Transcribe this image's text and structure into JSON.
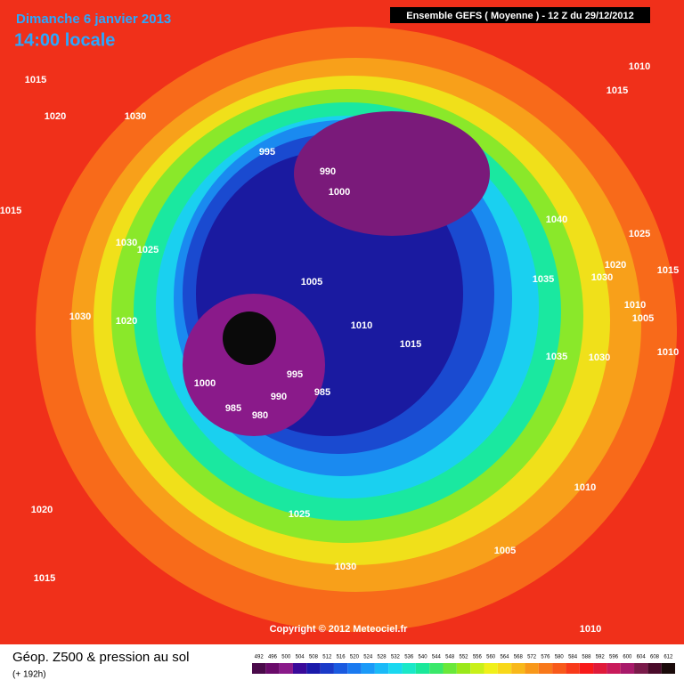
{
  "header": {
    "date": "Dimanche 6 janvier 2013",
    "time": "14:00 locale",
    "model": "Ensemble GEFS ( Moyenne )  -  12 Z du 29/12/2012"
  },
  "isobar_labels": [
    "1015",
    "1020",
    "1030",
    "1015",
    "995",
    "990",
    "1000",
    "1030",
    "1025",
    "1005",
    "1030",
    "1020",
    "1010",
    "1015",
    "995",
    "985",
    "990",
    "1000",
    "985",
    "980",
    "1040",
    "1025",
    "1020",
    "1035",
    "1030",
    "1015",
    "1010",
    "1005",
    "1035",
    "1030",
    "1010",
    "1010",
    "1015",
    "1010",
    "1020",
    "1025",
    "1005",
    "1030",
    "1015",
    "1010"
  ],
  "copyright": "Copyright © 2012 Meteociel.fr",
  "footer": {
    "title": "Géop. Z500 & pression au sol",
    "lead": "(+ 192h)"
  },
  "scale": {
    "labels": [
      "492",
      "496",
      "500",
      "504",
      "508",
      "512",
      "516",
      "520",
      "524",
      "528",
      "532",
      "536",
      "540",
      "544",
      "548",
      "552",
      "556",
      "560",
      "564",
      "568",
      "572",
      "576",
      "580",
      "584",
      "588",
      "592",
      "596",
      "600",
      "604",
      "608",
      "612"
    ],
    "colors": [
      "#4a0a4a",
      "#6a0a6a",
      "#8a1a8a",
      "#3a0a9a",
      "#1a1aaa",
      "#1a3ac8",
      "#1a5ae0",
      "#1a7af0",
      "#1a9af8",
      "#1abaf8",
      "#1ad8f0",
      "#1ae8c8",
      "#1ae89a",
      "#3ae86a",
      "#6ae83a",
      "#9ae81a",
      "#c8f01a",
      "#f0f01a",
      "#f8d81a",
      "#f8b81a",
      "#f8981a",
      "#f8781a",
      "#f85a1a",
      "#f83a1a",
      "#f81a1a",
      "#e01a3a",
      "#c81a5a",
      "#a81a6a",
      "#7a1a4a",
      "#4a0a2a",
      "#1a0a0a"
    ]
  }
}
